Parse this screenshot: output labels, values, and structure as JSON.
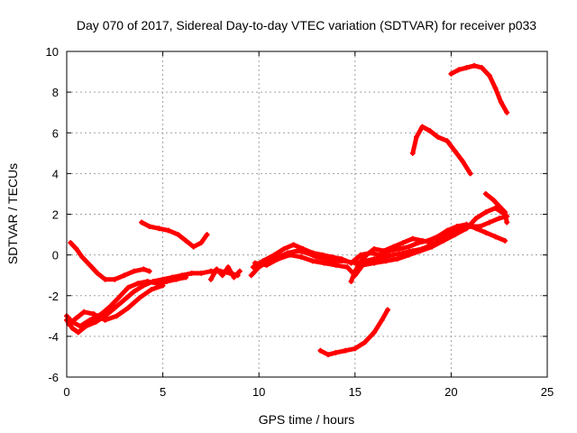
{
  "chart_data": {
    "type": "scatter",
    "title": "Day 070 of 2017, Sidereal Day-to-day VTEC variation (SDTVAR) for receiver p033",
    "xlabel": "GPS time / hours",
    "ylabel": "SDTVAR / TECUs",
    "xlim": [
      0,
      25
    ],
    "ylim": [
      -6,
      10
    ],
    "xticks": [
      "0",
      "5",
      "10",
      "15",
      "20",
      "25"
    ],
    "yticks": [
      "-6",
      "-4",
      "-2",
      "0",
      "2",
      "4",
      "6",
      "8",
      "10"
    ],
    "grid": true,
    "color": "#ff0000",
    "series": [
      {
        "points": [
          [
            0.0,
            -3.2
          ],
          [
            0.3,
            -3.6
          ],
          [
            0.6,
            -3.8
          ],
          [
            1.0,
            -3.5
          ],
          [
            1.5,
            -3.3
          ],
          [
            2.0,
            -3.0
          ],
          [
            2.5,
            -2.6
          ],
          [
            3.0,
            -2.2
          ],
          [
            3.5,
            -1.8
          ],
          [
            4.0,
            -1.5
          ],
          [
            4.5,
            -1.3
          ],
          [
            5.0,
            -1.2
          ],
          [
            5.5,
            -1.1
          ],
          [
            6.0,
            -1.0
          ],
          [
            6.5,
            -0.9
          ],
          [
            7.0,
            -0.9
          ],
          [
            7.5,
            -0.8
          ],
          [
            8.0,
            -0.8
          ],
          [
            8.5,
            -0.9
          ],
          [
            8.9,
            -1.0
          ]
        ]
      },
      {
        "points": [
          [
            0.0,
            -3.0
          ],
          [
            0.3,
            -3.3
          ],
          [
            0.7,
            -3.5
          ],
          [
            1.2,
            -3.2
          ],
          [
            1.8,
            -2.9
          ],
          [
            2.3,
            -2.5
          ],
          [
            2.8,
            -2.0
          ],
          [
            3.2,
            -1.6
          ],
          [
            3.7,
            -1.4
          ],
          [
            4.2,
            -1.3
          ],
          [
            4.7,
            -1.4
          ],
          [
            5.2,
            -1.3
          ],
          [
            5.7,
            -1.2
          ],
          [
            6.2,
            -1.1
          ]
        ]
      },
      {
        "points": [
          [
            0.1,
            -3.4
          ],
          [
            0.5,
            -3.1
          ],
          [
            0.9,
            -2.8
          ],
          [
            1.4,
            -2.9
          ],
          [
            2.0,
            -3.2
          ],
          [
            2.6,
            -3.0
          ],
          [
            3.2,
            -2.6
          ],
          [
            3.8,
            -2.1
          ],
          [
            4.4,
            -1.7
          ],
          [
            5.0,
            -1.5
          ]
        ]
      },
      {
        "points": [
          [
            0.2,
            0.6
          ],
          [
            0.5,
            0.3
          ],
          [
            0.8,
            -0.1
          ],
          [
            1.2,
            -0.5
          ],
          [
            1.6,
            -0.9
          ],
          [
            2.0,
            -1.2
          ],
          [
            2.5,
            -1.2
          ],
          [
            3.0,
            -1.0
          ],
          [
            3.5,
            -0.8
          ],
          [
            4.0,
            -0.7
          ],
          [
            4.3,
            -0.8
          ]
        ]
      },
      {
        "points": [
          [
            3.9,
            1.6
          ],
          [
            4.3,
            1.4
          ],
          [
            4.8,
            1.3
          ],
          [
            5.3,
            1.2
          ],
          [
            5.8,
            1.0
          ],
          [
            6.2,
            0.7
          ],
          [
            6.6,
            0.4
          ],
          [
            7.0,
            0.6
          ],
          [
            7.3,
            1.0
          ]
        ]
      },
      {
        "points": [
          [
            7.5,
            -1.2
          ],
          [
            7.8,
            -0.7
          ],
          [
            8.1,
            -1.0
          ],
          [
            8.4,
            -0.6
          ],
          [
            8.7,
            -1.1
          ],
          [
            9.0,
            -0.8
          ]
        ]
      },
      {
        "points": [
          [
            9.6,
            -1.0
          ],
          [
            10.0,
            -0.6
          ],
          [
            10.5,
            -0.3
          ],
          [
            11.0,
            -0.1
          ],
          [
            11.5,
            0.1
          ],
          [
            12.0,
            0.2
          ],
          [
            12.5,
            0.1
          ],
          [
            13.0,
            -0.1
          ],
          [
            13.5,
            -0.2
          ],
          [
            14.0,
            -0.3
          ],
          [
            14.5,
            -0.3
          ],
          [
            15.0,
            -0.4
          ],
          [
            15.5,
            -0.3
          ],
          [
            16.0,
            -0.2
          ],
          [
            16.5,
            -0.1
          ],
          [
            17.0,
            0.0
          ],
          [
            17.5,
            0.1
          ],
          [
            18.0,
            0.2
          ],
          [
            18.5,
            0.3
          ],
          [
            19.0,
            0.5
          ],
          [
            19.5,
            0.8
          ],
          [
            20.0,
            1.1
          ],
          [
            20.5,
            1.3
          ],
          [
            21.0,
            1.4
          ],
          [
            21.5,
            1.4
          ],
          [
            22.0,
            1.6
          ],
          [
            22.5,
            1.8
          ],
          [
            22.9,
            1.9
          ]
        ]
      },
      {
        "points": [
          [
            9.7,
            -0.6
          ],
          [
            10.2,
            -0.3
          ],
          [
            10.8,
            0.0
          ],
          [
            11.3,
            0.3
          ],
          [
            11.8,
            0.5
          ],
          [
            12.3,
            0.3
          ],
          [
            12.8,
            0.1
          ],
          [
            13.3,
            0.0
          ],
          [
            13.8,
            -0.1
          ],
          [
            14.3,
            -0.2
          ],
          [
            14.8,
            -0.4
          ],
          [
            15.3,
            0.0
          ],
          [
            15.8,
            0.1
          ],
          [
            16.3,
            0.0
          ],
          [
            16.8,
            0.2
          ],
          [
            17.3,
            0.3
          ],
          [
            17.8,
            0.4
          ],
          [
            18.3,
            0.6
          ],
          [
            18.8,
            0.7
          ],
          [
            19.3,
            0.9
          ],
          [
            19.8,
            1.2
          ],
          [
            20.3,
            1.4
          ],
          [
            20.8,
            1.5
          ],
          [
            21.3,
            1.3
          ],
          [
            21.8,
            1.1
          ],
          [
            22.3,
            0.9
          ],
          [
            22.8,
            0.7
          ]
        ]
      },
      {
        "points": [
          [
            9.8,
            -0.4
          ],
          [
            10.4,
            -0.5
          ],
          [
            11.0,
            -0.2
          ],
          [
            11.6,
            0.0
          ],
          [
            12.2,
            -0.1
          ],
          [
            12.8,
            -0.3
          ],
          [
            13.4,
            -0.4
          ],
          [
            14.0,
            -0.5
          ],
          [
            14.6,
            -0.6
          ],
          [
            15.0,
            -1.0
          ],
          [
            15.4,
            -0.5
          ],
          [
            16.0,
            -0.4
          ],
          [
            16.6,
            -0.3
          ],
          [
            17.2,
            -0.2
          ],
          [
            17.8,
            0.0
          ],
          [
            18.4,
            0.2
          ],
          [
            19.0,
            0.4
          ],
          [
            19.6,
            0.7
          ],
          [
            20.2,
            1.0
          ],
          [
            20.8,
            1.3
          ],
          [
            21.3,
            1.8
          ],
          [
            21.8,
            2.1
          ],
          [
            22.3,
            2.3
          ],
          [
            22.8,
            2.0
          ]
        ]
      },
      {
        "points": [
          [
            14.8,
            -1.3
          ],
          [
            15.0,
            -0.8
          ],
          [
            15.3,
            -0.3
          ],
          [
            15.6,
            0.0
          ],
          [
            16.0,
            0.3
          ],
          [
            16.5,
            0.2
          ],
          [
            17.0,
            0.4
          ],
          [
            17.5,
            0.6
          ],
          [
            18.0,
            0.8
          ],
          [
            18.5,
            0.7
          ],
          [
            19.0,
            0.6
          ]
        ]
      },
      {
        "points": [
          [
            21.8,
            3.0
          ],
          [
            22.2,
            2.7
          ],
          [
            22.5,
            2.4
          ],
          [
            22.8,
            2.1
          ],
          [
            22.9,
            1.6
          ]
        ]
      },
      {
        "points": [
          [
            13.2,
            -4.7
          ],
          [
            13.6,
            -4.9
          ],
          [
            14.0,
            -4.8
          ],
          [
            14.5,
            -4.7
          ],
          [
            15.0,
            -4.6
          ],
          [
            15.5,
            -4.3
          ],
          [
            16.0,
            -3.8
          ],
          [
            16.4,
            -3.2
          ],
          [
            16.7,
            -2.7
          ]
        ]
      },
      {
        "points": [
          [
            18.0,
            5.0
          ],
          [
            18.2,
            5.8
          ],
          [
            18.5,
            6.3
          ],
          [
            18.9,
            6.1
          ],
          [
            19.3,
            5.8
          ],
          [
            19.8,
            5.6
          ],
          [
            20.2,
            5.1
          ],
          [
            20.6,
            4.6
          ],
          [
            21.0,
            4.0
          ]
        ]
      },
      {
        "points": [
          [
            20.0,
            8.9
          ],
          [
            20.4,
            9.1
          ],
          [
            20.8,
            9.2
          ],
          [
            21.2,
            9.3
          ],
          [
            21.6,
            9.2
          ],
          [
            22.0,
            8.8
          ],
          [
            22.3,
            8.2
          ],
          [
            22.6,
            7.5
          ],
          [
            22.9,
            7.0
          ]
        ]
      }
    ]
  }
}
